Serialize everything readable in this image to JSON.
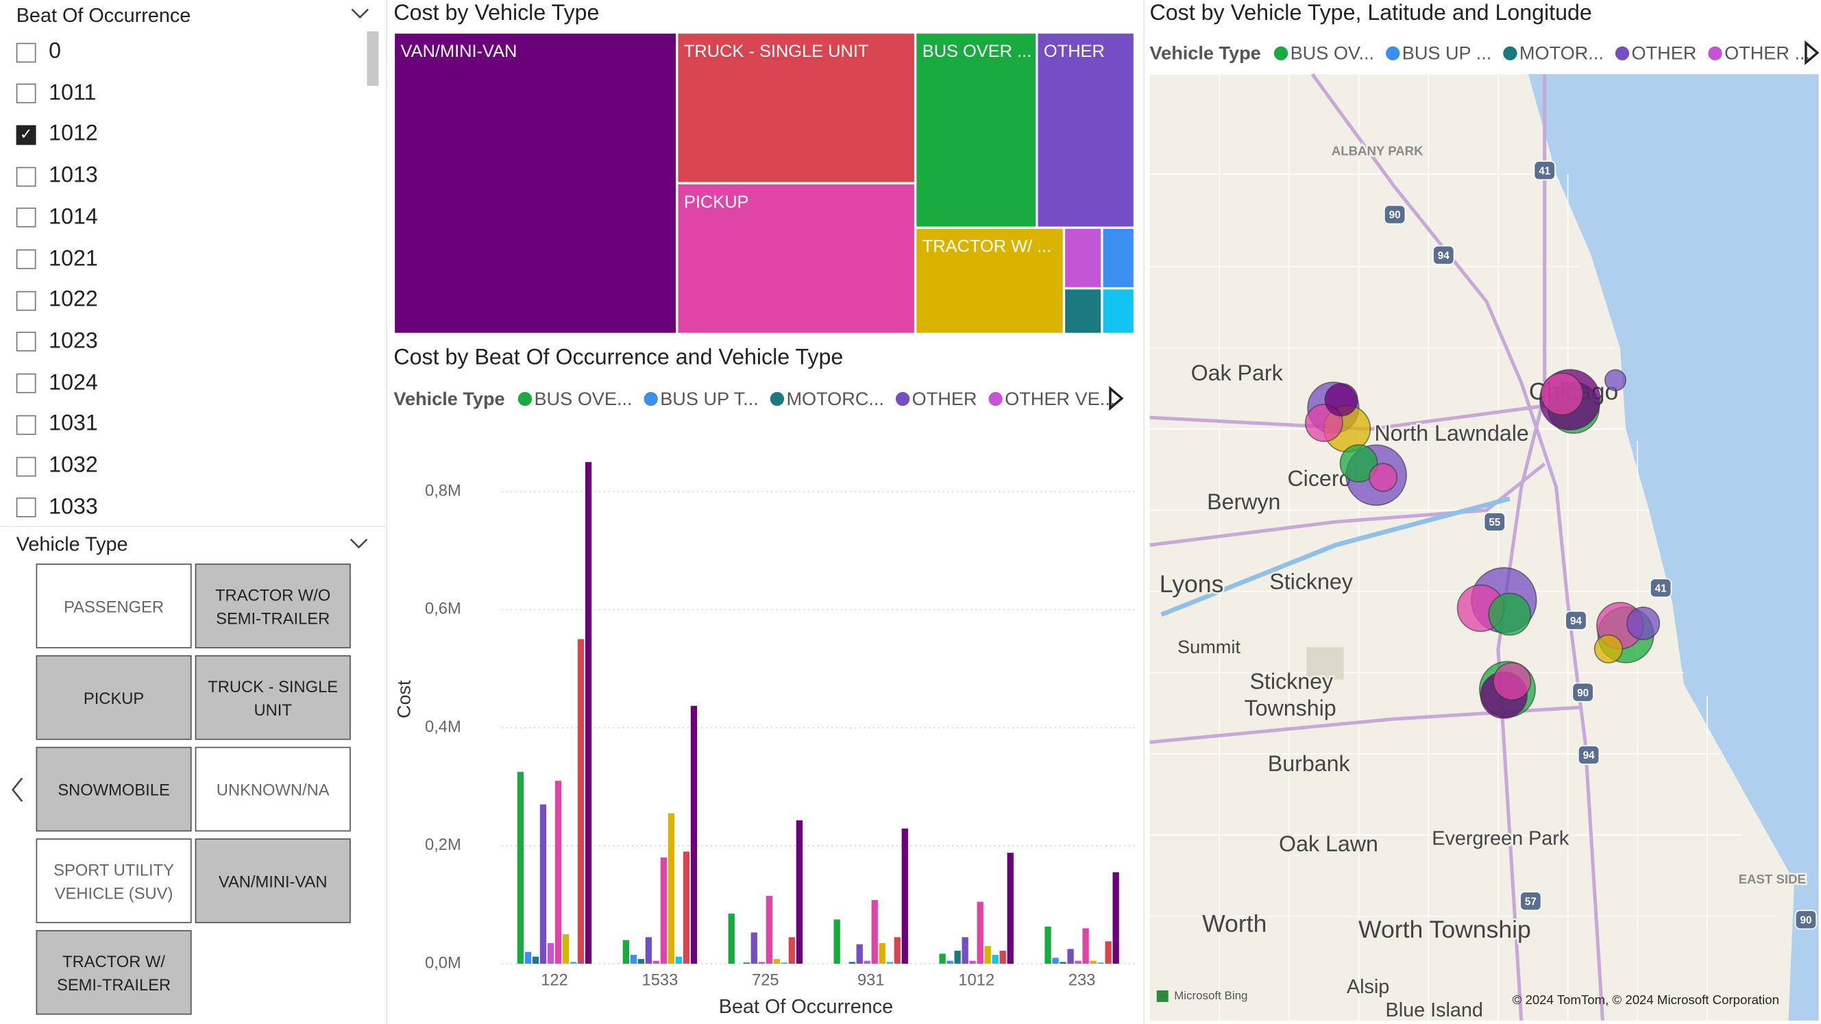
{
  "beat_slicer": {
    "title": "Beat Of Occurrence",
    "items": [
      {
        "label": "0",
        "checked": false
      },
      {
        "label": "1011",
        "checked": false
      },
      {
        "label": "1012",
        "checked": true
      },
      {
        "label": "1013",
        "checked": false
      },
      {
        "label": "1014",
        "checked": false
      },
      {
        "label": "1021",
        "checked": false
      },
      {
        "label": "1022",
        "checked": false
      },
      {
        "label": "1023",
        "checked": false
      },
      {
        "label": "1024",
        "checked": false
      },
      {
        "label": "1031",
        "checked": false
      },
      {
        "label": "1032",
        "checked": false
      },
      {
        "label": "1033",
        "checked": false
      }
    ]
  },
  "vehicle_slicer": {
    "title": "Vehicle Type",
    "items": [
      {
        "label": "PASSENGER",
        "selected": false
      },
      {
        "label": "TRACTOR W/O SEMI-TRAILER",
        "selected": true
      },
      {
        "label": "PICKUP",
        "selected": true
      },
      {
        "label": "TRUCK - SINGLE UNIT",
        "selected": true
      },
      {
        "label": "SNOWMOBILE",
        "selected": true
      },
      {
        "label": "UNKNOWN/NA",
        "selected": false
      },
      {
        "label": "SPORT UTILITY VEHICLE (SUV)",
        "selected": false
      },
      {
        "label": "VAN/MINI-VAN",
        "selected": true
      },
      {
        "label": "TRACTOR W/ SEMI-TRAILER",
        "selected": true
      }
    ]
  },
  "chart_data": [
    {
      "type": "treemap",
      "title": "Cost by Vehicle Type",
      "categories": [
        "VAN/MINI-VAN",
        "TRUCK - SINGLE UNIT",
        "PICKUP",
        "BUS OVER ...",
        "OTHER",
        "TRACTOR W/ ...",
        null,
        null,
        null,
        null
      ],
      "values": [
        2115000,
        890000,
        890000,
        587000,
        473000,
        391000,
        57000,
        49000,
        43000,
        37000
      ],
      "colors": [
        "#6b007b",
        "#d64550",
        "#e044a7",
        "#1aab40",
        "#744ec2",
        "#d9b300",
        "#c455d4",
        "#3a8ff0",
        "#1b7a80",
        "#12c5f0"
      ]
    },
    {
      "type": "bar",
      "title": "Cost by Beat Of Occurrence and Vehicle Type",
      "legend_title": "Vehicle Type",
      "x_label": "Beat Of Occurrence",
      "y_label": "Cost",
      "categories": [
        "122",
        "1533",
        "725",
        "931",
        "1012",
        "233"
      ],
      "series": [
        {
          "name": "BUS OVE...",
          "color": "#1aab40",
          "values": [
            325000,
            40000,
            85000,
            75000,
            17000,
            63000
          ]
        },
        {
          "name": "BUS UP T...",
          "color": "#3a8ff0",
          "values": [
            20000,
            15000,
            0,
            0,
            5000,
            10000
          ]
        },
        {
          "name": "MOTORC...",
          "color": "#1b7a80",
          "values": [
            12000,
            8000,
            2000,
            3000,
            22000,
            3000
          ]
        },
        {
          "name": "OTHER",
          "color": "#744ec2",
          "values": [
            270000,
            45000,
            53000,
            33000,
            45000,
            25000
          ]
        },
        {
          "name": "OTHER VE...",
          "color": "#c455d4",
          "values": [
            35000,
            5000,
            3000,
            5000,
            5000,
            5000
          ]
        },
        {
          "color": "#e044a7",
          "values": [
            310000,
            180000,
            115000,
            108000,
            105000,
            60000
          ]
        },
        {
          "color": "#d9b300",
          "values": [
            50000,
            255000,
            8000,
            35000,
            30000,
            5000
          ]
        },
        {
          "color": "#12c5f0",
          "values": [
            3000,
            12000,
            2000,
            3000,
            15000,
            2000
          ]
        },
        {
          "color": "#d64550",
          "values": [
            550000,
            190000,
            45000,
            45000,
            22000,
            38000
          ]
        },
        {
          "color": "#6b007b",
          "values": [
            850000,
            437000,
            243000,
            229000,
            188000,
            155000
          ]
        }
      ],
      "ylim": [
        0,
        900000
      ],
      "yticks": [
        {
          "value": 0,
          "label": "0,0M"
        },
        {
          "value": 200000,
          "label": "0,2M"
        },
        {
          "value": 400000,
          "label": "0,4M"
        },
        {
          "value": 600000,
          "label": "0,6M"
        },
        {
          "value": 800000,
          "label": "0,8M"
        }
      ],
      "grid": true
    },
    {
      "type": "map",
      "title": "Cost by Vehicle Type, Latitude and Longitude",
      "legend_title": "Vehicle Type",
      "series": [
        {
          "name": "BUS OV...",
          "color": "#1aab40"
        },
        {
          "name": "BUS UP ...",
          "color": "#3a8ff0"
        },
        {
          "name": "MOTOR...",
          "color": "#1b7a80"
        },
        {
          "name": "OTHER",
          "color": "#744ec2"
        },
        {
          "name": "OTHER ...",
          "color": "#c455d4"
        },
        {
          "color": "#e044a7"
        },
        {
          "color": "#d9b300"
        },
        {
          "color": "#6b007b"
        }
      ],
      "xlim": [
        -87.88,
        -87.52
      ],
      "ylim": [
        41.65,
        41.98
      ],
      "points": [
        {
          "series": 3,
          "lon": -87.7812,
          "lat": 41.8637,
          "size": 48400
        },
        {
          "series": 6,
          "lon": -87.7738,
          "lat": 41.8564,
          "size": 40000
        },
        {
          "series": 5,
          "lon": -87.7862,
          "lat": 41.8584,
          "size": 25600
        },
        {
          "series": 7,
          "lon": -87.7769,
          "lat": 41.8665,
          "size": 19600
        },
        {
          "series": 3,
          "lon": -87.7581,
          "lat": 41.8402,
          "size": 67600
        },
        {
          "series": 0,
          "lon": -87.7675,
          "lat": 41.8443,
          "size": 25600
        },
        {
          "series": 5,
          "lon": -87.7544,
          "lat": 41.8394,
          "size": 14400
        },
        {
          "series": 0,
          "lon": -87.6519,
          "lat": 41.8637,
          "size": 48400
        },
        {
          "series": 7,
          "lon": -87.6538,
          "lat": 41.8665,
          "size": 67600
        },
        {
          "series": 5,
          "lon": -87.6581,
          "lat": 41.8685,
          "size": 32400
        },
        {
          "series": 3,
          "lon": -87.6294,
          "lat": 41.8733,
          "size": 8100
        },
        {
          "series": 3,
          "lon": -87.6894,
          "lat": 41.7966,
          "size": 78400
        },
        {
          "series": 5,
          "lon": -87.7019,
          "lat": 41.7938,
          "size": 40000
        },
        {
          "series": 0,
          "lon": -87.6863,
          "lat": 41.7917,
          "size": 32400
        },
        {
          "series": 0,
          "lon": -87.6875,
          "lat": 41.7655,
          "size": 57600
        },
        {
          "series": 7,
          "lon": -87.6894,
          "lat": 41.7635,
          "size": 40000
        },
        {
          "series": 5,
          "lon": -87.685,
          "lat": 41.7683,
          "size": 25600
        },
        {
          "series": 0,
          "lon": -87.6238,
          "lat": 41.7845,
          "size": 57600
        },
        {
          "series": 5,
          "lon": -87.6269,
          "lat": 41.7877,
          "size": 40000
        },
        {
          "series": 3,
          "lon": -87.6144,
          "lat": 41.7885,
          "size": 19600
        },
        {
          "series": 6,
          "lon": -87.6331,
          "lat": 41.7796,
          "size": 14400
        }
      ],
      "places": [
        "ALBANY PARK",
        "Oak Park",
        "Chicago",
        "North Lawndale",
        "Cicero",
        "Berwyn",
        "Lyons",
        "Stickney",
        "Summit",
        "Stickney",
        "Township",
        "Burbank",
        "Oak Lawn",
        "Evergreen Park",
        "Worth",
        "Worth Township",
        "Alsip",
        "Blue Island",
        "EAST SIDE"
      ],
      "shields": [
        "41",
        "90",
        "94",
        "55",
        "94",
        "41",
        "90",
        "94",
        "57",
        "90"
      ],
      "attribution": [
        "Microsoft Bing",
        "© 2024 TomTom, © 2024 Microsoft Corporation"
      ]
    }
  ]
}
